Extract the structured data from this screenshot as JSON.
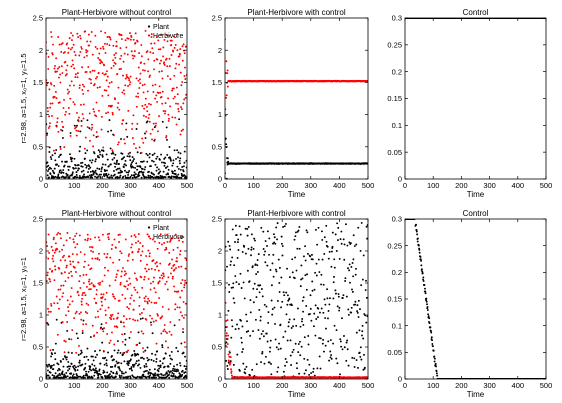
{
  "figure": {
    "row_labels": [
      "r=2.98, a=1.5, x₀=1, y₀=1.5",
      "r=2.98, a=1.5, x₀=1, y₀=1"
    ]
  },
  "chart_data": [
    {
      "type": "scatter",
      "panel": "r1c1",
      "title": "Plant-Herbivore without control",
      "xlabel": "Time",
      "ylabel": "r=2.98, a=1.5, x₀=1, y₀=1.5",
      "xlim": [
        0,
        500
      ],
      "ylim": [
        0,
        2.5
      ],
      "xticks": [
        0,
        100,
        200,
        300,
        400,
        500
      ],
      "yticks": [
        0,
        0.5,
        1,
        1.5,
        2,
        2.5
      ],
      "legend": {
        "position": "top-right",
        "entries": [
          "Plant",
          "Herbivore"
        ]
      },
      "series": [
        {
          "name": "Plant",
          "color": "#000000",
          "pattern": {
            "kind": "chaotic",
            "n": 500,
            "lo": 0.02,
            "hi": 0.45,
            "skew": 2.2,
            "sparse_lo": 0.45,
            "sparse_hi": 0.95,
            "sparse_frac": 0.08
          }
        },
        {
          "name": "Herbivore",
          "color": "#ff0000",
          "pattern": {
            "kind": "chaotic",
            "n": 500,
            "lo": 0.55,
            "hi": 2.3,
            "skew": 0.8,
            "sparse_lo": 0.4,
            "sparse_hi": 0.55,
            "sparse_frac": 0.03
          }
        }
      ]
    },
    {
      "type": "scatter",
      "panel": "r1c2",
      "title": "Plant-Herbivore with control",
      "xlabel": "Time",
      "ylabel": "",
      "xlim": [
        0,
        500
      ],
      "ylim": [
        0,
        2.5
      ],
      "xticks": [
        0,
        100,
        200,
        300,
        400,
        500
      ],
      "yticks": [
        0,
        0.5,
        1,
        1.5,
        2,
        2.5
      ],
      "series": [
        {
          "name": "",
          "color": "#000000",
          "pattern": {
            "kind": "converge",
            "n": 500,
            "settle": 12,
            "level": 0.24,
            "spread": 0.6
          }
        },
        {
          "name": "",
          "color": "#ff0000",
          "pattern": {
            "kind": "converge",
            "n": 500,
            "settle": 12,
            "level": 1.52,
            "spread": 0.7
          }
        }
      ]
    },
    {
      "type": "line",
      "panel": "r1c3",
      "title": "Control",
      "xlabel": "Time",
      "ylabel": "",
      "xlim": [
        0,
        500
      ],
      "ylim": [
        0,
        0.3
      ],
      "xticks": [
        0,
        100,
        200,
        300,
        400,
        500
      ],
      "yticks": [
        0,
        0.05,
        0.1,
        0.15,
        0.2,
        0.25,
        0.3
      ],
      "series": [
        {
          "name": "",
          "color": "#000000",
          "pattern": {
            "kind": "constant",
            "level": 0.3
          }
        }
      ]
    },
    {
      "type": "scatter",
      "panel": "r2c1",
      "title": "Plant-Herbivore without control",
      "xlabel": "Time",
      "ylabel": "r=2.98, a=1.5, x₀=1, y₀=1",
      "xlim": [
        0,
        500
      ],
      "ylim": [
        0,
        2.5
      ],
      "xticks": [
        0,
        100,
        200,
        300,
        400,
        500
      ],
      "yticks": [
        0,
        0.5,
        1,
        1.5,
        2,
        2.5
      ],
      "legend": {
        "position": "top-right",
        "entries": [
          "Plant",
          "Herbivore"
        ]
      },
      "series": [
        {
          "name": "Plant",
          "color": "#000000",
          "pattern": {
            "kind": "chaotic",
            "n": 500,
            "lo": 0.02,
            "hi": 0.45,
            "skew": 2.2,
            "sparse_lo": 0.45,
            "sparse_hi": 0.95,
            "sparse_frac": 0.08
          }
        },
        {
          "name": "Herbivore",
          "color": "#ff0000",
          "pattern": {
            "kind": "chaotic",
            "n": 500,
            "lo": 0.55,
            "hi": 2.3,
            "skew": 0.8,
            "sparse_lo": 0.4,
            "sparse_hi": 0.55,
            "sparse_frac": 0.03
          }
        }
      ]
    },
    {
      "type": "scatter",
      "panel": "r2c2",
      "title": "Plant-Herbivore with control",
      "xlabel": "Time",
      "ylabel": "",
      "xlim": [
        0,
        500
      ],
      "ylim": [
        0,
        2.5
      ],
      "xticks": [
        0,
        100,
        200,
        300,
        400,
        500
      ],
      "yticks": [
        0,
        0.5,
        1,
        1.5,
        2,
        2.5
      ],
      "series": [
        {
          "name": "",
          "color": "#000000",
          "pattern": {
            "kind": "chaotic",
            "n": 500,
            "lo": 0.0,
            "hi": 2.45,
            "skew": 1.0,
            "sparse_lo": 0,
            "sparse_hi": 0,
            "sparse_frac": 0
          }
        },
        {
          "name": "",
          "color": "#ff0000",
          "pattern": {
            "kind": "decay",
            "n": 500,
            "start": 1.1,
            "end": 0.02,
            "duration": 25
          }
        }
      ]
    },
    {
      "type": "scatter",
      "panel": "r2c3",
      "title": "Control",
      "xlabel": "Time",
      "ylabel": "",
      "xlim": [
        0,
        500
      ],
      "ylim": [
        0,
        0.3
      ],
      "xticks": [
        0,
        100,
        200,
        300,
        400,
        500
      ],
      "yticks": [
        0,
        0.05,
        0.1,
        0.15,
        0.2,
        0.25,
        0.3
      ],
      "series": [
        {
          "name": "",
          "color": "#000000",
          "pattern": {
            "kind": "ramp_down",
            "n": 500,
            "hold_until": 35,
            "zero_at": 115,
            "start": 0.3
          }
        }
      ]
    }
  ]
}
